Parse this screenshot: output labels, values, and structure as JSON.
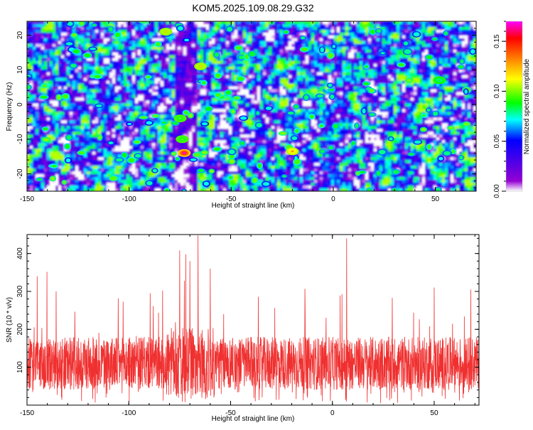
{
  "title": "KOM5.2025.109.08.29.G32",
  "chart_data": [
    {
      "type": "heatmap",
      "title": "KOM5.2025.109.08.29.G32",
      "xlabel": "Height of straight line (km)",
      "ylabel": "Frequency (Hz)",
      "xlim": [
        -150,
        70
      ],
      "ylim": [
        -25,
        24
      ],
      "xticks": [
        -150,
        -100,
        -50,
        0,
        50
      ],
      "yticks": [
        -20,
        -10,
        0,
        10,
        20
      ],
      "colorbar": {
        "label": "Normalized spectral amplitude",
        "range": [
          0.0,
          0.17
        ],
        "ticks": [
          0.0,
          0.05,
          0.1,
          0.15
        ],
        "colors": [
          "#ffffff",
          "#9400d3",
          "#0000ff",
          "#00ffff",
          "#00ff00",
          "#ffff00",
          "#ff8000",
          "#ff0000",
          "#ff00ff"
        ]
      },
      "hotspots": [
        {
          "x": -73,
          "y": -14,
          "value": 0.17
        },
        {
          "x": -20,
          "y": -13.5,
          "value": 0.13
        },
        {
          "x": -82,
          "y": 21,
          "value": 0.12
        },
        {
          "x": -65,
          "y": 11,
          "value": 0.12
        },
        {
          "x": -75,
          "y": -4,
          "value": 0.1
        },
        {
          "x": -74,
          "y": -10,
          "value": 0.1
        },
        {
          "x": 52,
          "y": 7,
          "value": 0.09
        }
      ]
    },
    {
      "type": "line",
      "xlabel": "Height of straight line (km)",
      "ylabel": "SNR (10 * v/v)",
      "xlim": [
        -150,
        72
      ],
      "ylim": [
        0,
        450
      ],
      "xticks": [
        -150,
        -100,
        -50,
        0,
        50
      ],
      "yticks": [
        100,
        200,
        300,
        400
      ],
      "color": "#f03030",
      "series": [
        {
          "name": "SNR",
          "baseline": 110,
          "noise_amplitude": 70,
          "sample_step_km": 0.1
        }
      ],
      "peaks": [
        {
          "x": -66,
          "y": 448
        },
        {
          "x": 7,
          "y": 440
        },
        {
          "x": -75,
          "y": 408
        },
        {
          "x": -72,
          "y": 398
        },
        {
          "x": -145,
          "y": 340
        },
        {
          "x": -70,
          "y": 380
        },
        {
          "x": -60,
          "y": 360
        },
        {
          "x": 50,
          "y": 310
        },
        {
          "x": 68,
          "y": 305
        }
      ]
    }
  ]
}
